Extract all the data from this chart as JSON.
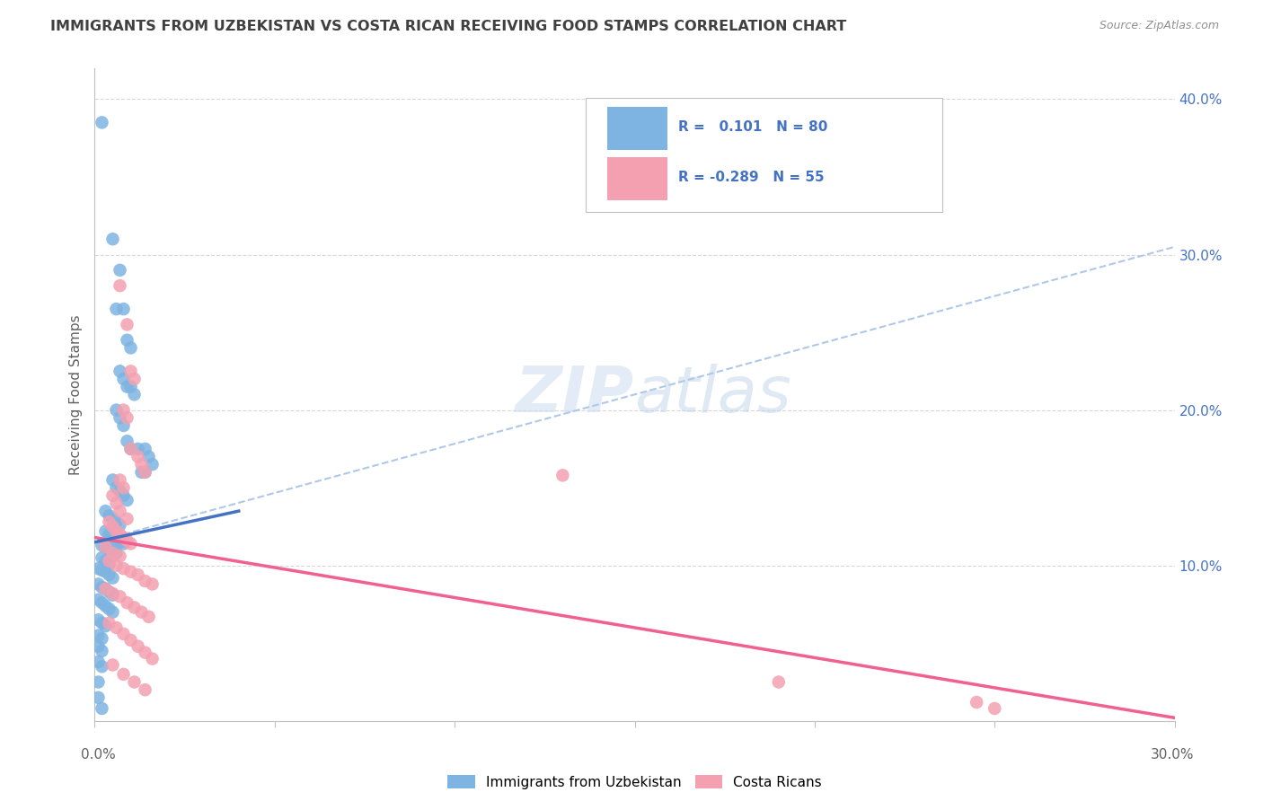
{
  "title": "IMMIGRANTS FROM UZBEKISTAN VS COSTA RICAN RECEIVING FOOD STAMPS CORRELATION CHART",
  "source": "Source: ZipAtlas.com",
  "ylabel": "Receiving Food Stamps",
  "legend_label_blue": "Immigrants from Uzbekistan",
  "legend_label_pink": "Costa Ricans",
  "blue_color": "#7eb4e2",
  "pink_color": "#f4a0b0",
  "blue_line_color": "#4472c4",
  "pink_line_color": "#f06090",
  "trendline_dashed_color": "#b0c8e8",
  "background_color": "#ffffff",
  "title_color": "#404040",
  "watermark_color": "#d0dff0",
  "xmin": 0.0,
  "xmax": 0.3,
  "ymin": 0.0,
  "ymax": 0.42,
  "blue_trendline": [
    [
      0.0,
      0.115
    ],
    [
      0.04,
      0.135
    ]
  ],
  "blue_trendline_dashed": [
    [
      0.0,
      0.115
    ],
    [
      0.3,
      0.305
    ]
  ],
  "pink_trendline": [
    [
      0.0,
      0.118
    ],
    [
      0.3,
      0.002
    ]
  ],
  "blue_scatter": [
    [
      0.002,
      0.385
    ],
    [
      0.005,
      0.31
    ],
    [
      0.007,
      0.29
    ],
    [
      0.006,
      0.265
    ],
    [
      0.008,
      0.265
    ],
    [
      0.009,
      0.245
    ],
    [
      0.01,
      0.24
    ],
    [
      0.007,
      0.225
    ],
    [
      0.008,
      0.22
    ],
    [
      0.009,
      0.215
    ],
    [
      0.01,
      0.215
    ],
    [
      0.011,
      0.21
    ],
    [
      0.006,
      0.2
    ],
    [
      0.007,
      0.195
    ],
    [
      0.008,
      0.19
    ],
    [
      0.009,
      0.18
    ],
    [
      0.01,
      0.175
    ],
    [
      0.012,
      0.175
    ],
    [
      0.014,
      0.175
    ],
    [
      0.015,
      0.17
    ],
    [
      0.016,
      0.165
    ],
    [
      0.013,
      0.16
    ],
    [
      0.014,
      0.16
    ],
    [
      0.005,
      0.155
    ],
    [
      0.006,
      0.15
    ],
    [
      0.007,
      0.148
    ],
    [
      0.008,
      0.145
    ],
    [
      0.009,
      0.142
    ],
    [
      0.003,
      0.135
    ],
    [
      0.004,
      0.132
    ],
    [
      0.005,
      0.13
    ],
    [
      0.006,
      0.128
    ],
    [
      0.007,
      0.126
    ],
    [
      0.003,
      0.122
    ],
    [
      0.004,
      0.12
    ],
    [
      0.005,
      0.118
    ],
    [
      0.006,
      0.116
    ],
    [
      0.007,
      0.115
    ],
    [
      0.008,
      0.114
    ],
    [
      0.002,
      0.113
    ],
    [
      0.003,
      0.112
    ],
    [
      0.004,
      0.11
    ],
    [
      0.005,
      0.109
    ],
    [
      0.006,
      0.108
    ],
    [
      0.002,
      0.105
    ],
    [
      0.003,
      0.103
    ],
    [
      0.004,
      0.101
    ],
    [
      0.001,
      0.098
    ],
    [
      0.002,
      0.097
    ],
    [
      0.003,
      0.096
    ],
    [
      0.004,
      0.094
    ],
    [
      0.005,
      0.092
    ],
    [
      0.001,
      0.088
    ],
    [
      0.002,
      0.086
    ],
    [
      0.003,
      0.085
    ],
    [
      0.004,
      0.083
    ],
    [
      0.005,
      0.081
    ],
    [
      0.001,
      0.078
    ],
    [
      0.002,
      0.076
    ],
    [
      0.003,
      0.074
    ],
    [
      0.004,
      0.072
    ],
    [
      0.005,
      0.07
    ],
    [
      0.001,
      0.065
    ],
    [
      0.002,
      0.063
    ],
    [
      0.003,
      0.061
    ],
    [
      0.001,
      0.055
    ],
    [
      0.002,
      0.053
    ],
    [
      0.001,
      0.048
    ],
    [
      0.002,
      0.045
    ],
    [
      0.001,
      0.038
    ],
    [
      0.002,
      0.035
    ],
    [
      0.001,
      0.025
    ],
    [
      0.001,
      0.015
    ],
    [
      0.002,
      0.008
    ]
  ],
  "pink_scatter": [
    [
      0.007,
      0.28
    ],
    [
      0.009,
      0.255
    ],
    [
      0.01,
      0.225
    ],
    [
      0.011,
      0.22
    ],
    [
      0.008,
      0.2
    ],
    [
      0.009,
      0.195
    ],
    [
      0.01,
      0.175
    ],
    [
      0.012,
      0.17
    ],
    [
      0.013,
      0.165
    ],
    [
      0.014,
      0.16
    ],
    [
      0.007,
      0.155
    ],
    [
      0.008,
      0.15
    ],
    [
      0.005,
      0.145
    ],
    [
      0.006,
      0.14
    ],
    [
      0.007,
      0.135
    ],
    [
      0.009,
      0.13
    ],
    [
      0.004,
      0.128
    ],
    [
      0.005,
      0.125
    ],
    [
      0.006,
      0.122
    ],
    [
      0.007,
      0.12
    ],
    [
      0.008,
      0.118
    ],
    [
      0.009,
      0.116
    ],
    [
      0.01,
      0.114
    ],
    [
      0.003,
      0.112
    ],
    [
      0.005,
      0.108
    ],
    [
      0.007,
      0.106
    ],
    [
      0.004,
      0.103
    ],
    [
      0.006,
      0.1
    ],
    [
      0.008,
      0.098
    ],
    [
      0.01,
      0.096
    ],
    [
      0.012,
      0.094
    ],
    [
      0.014,
      0.09
    ],
    [
      0.016,
      0.088
    ],
    [
      0.003,
      0.085
    ],
    [
      0.005,
      0.082
    ],
    [
      0.007,
      0.08
    ],
    [
      0.009,
      0.076
    ],
    [
      0.011,
      0.073
    ],
    [
      0.013,
      0.07
    ],
    [
      0.015,
      0.067
    ],
    [
      0.004,
      0.063
    ],
    [
      0.006,
      0.06
    ],
    [
      0.008,
      0.056
    ],
    [
      0.01,
      0.052
    ],
    [
      0.012,
      0.048
    ],
    [
      0.014,
      0.044
    ],
    [
      0.016,
      0.04
    ],
    [
      0.005,
      0.036
    ],
    [
      0.008,
      0.03
    ],
    [
      0.011,
      0.025
    ],
    [
      0.014,
      0.02
    ],
    [
      0.13,
      0.158
    ],
    [
      0.25,
      0.008
    ],
    [
      0.245,
      0.012
    ],
    [
      0.19,
      0.025
    ]
  ]
}
